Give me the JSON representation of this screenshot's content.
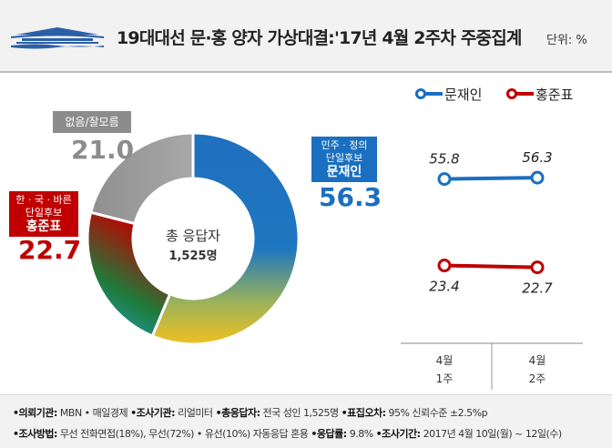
{
  "header": {
    "title": "19대대선 문·홍 양자 가상대결:'17년 4월 2주차 주중집계",
    "unit": "단위: %"
  },
  "donut": {
    "center_label": "총 응답자",
    "center_count": "1,525명",
    "segments": [
      {
        "tag_lines": [
          "민주 · 정의",
          "단일후보"
        ],
        "name": "문재인",
        "value": 56.3,
        "value_label": "56.3",
        "color": "#1a6fc0"
      },
      {
        "tag_lines": [],
        "name": "없음/잘모름",
        "value": 21.0,
        "value_label": "21.0",
        "color": "#8c8c8c"
      },
      {
        "tag_lines": [
          "한 · 국 · 바른",
          "단일후보"
        ],
        "name": "홍준표",
        "value": 22.7,
        "value_label": "22.7",
        "color": "#c00000"
      }
    ]
  },
  "chart_data": {
    "type": "line",
    "categories": [
      [
        "4월",
        "1주"
      ],
      [
        "4월",
        "2주"
      ]
    ],
    "series": [
      {
        "name": "문재인",
        "values": [
          55.8,
          56.3
        ],
        "value_labels": [
          "55.8",
          "56.3"
        ],
        "color": "#1a6fc0"
      },
      {
        "name": "홍준표",
        "values": [
          23.4,
          22.7
        ],
        "value_labels": [
          "23.4",
          "22.7"
        ],
        "color": "#c00000"
      }
    ],
    "legend_position": "top"
  },
  "footer": {
    "line1": [
      {
        "label": "의뢰기관",
        "value": " MBN • 매일경제 "
      },
      {
        "label": "조사기관",
        "value": " 리얼미터 "
      },
      {
        "label": "총응답자",
        "value": " 전국 성인 1,525명 "
      },
      {
        "label": "표집오차",
        "value": " 95% 신뢰수준 ±2.5%p"
      }
    ],
    "line2": [
      {
        "label": "조사방법",
        "value": " 무선 전화면접(18%), 무선(72%) • 유선(10%) 자동응답 혼용 "
      },
      {
        "label": "응답률",
        "value": " 9.8% "
      },
      {
        "label": "조사기간",
        "value": " 2017년 4월 10일(월) ~ 12일(수)"
      }
    ]
  }
}
